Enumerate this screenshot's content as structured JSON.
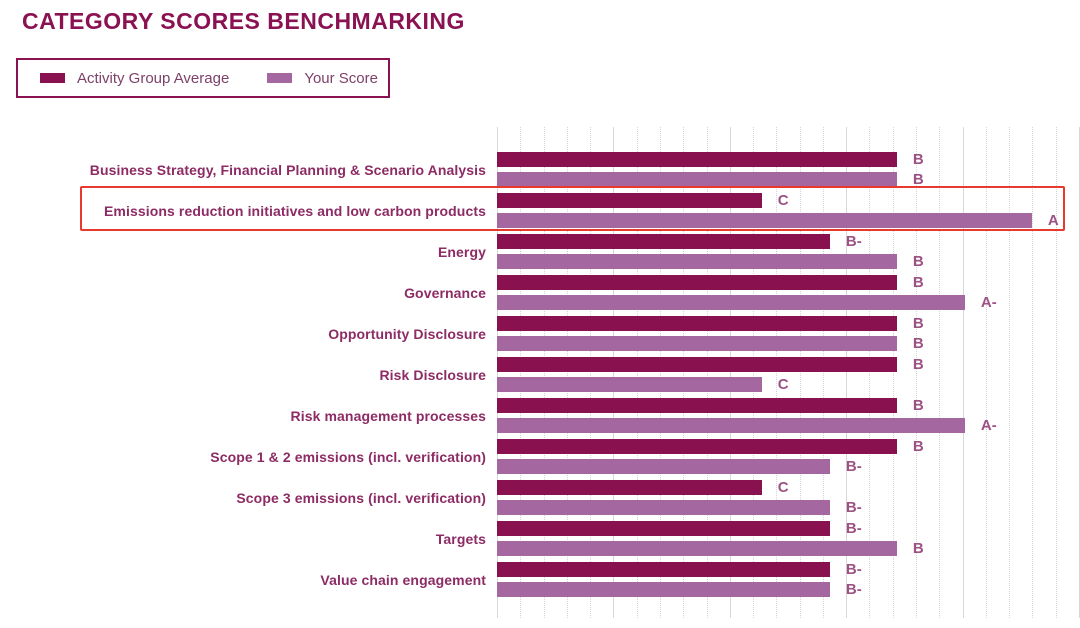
{
  "title": "CATEGORY SCORES BENCHMARKING",
  "legend": {
    "items": [
      {
        "label": "Activity Group Average",
        "color": "#8a1150"
      },
      {
        "label": "Your Score",
        "color": "#a5679f"
      }
    ]
  },
  "chart_data": {
    "type": "bar",
    "orientation": "horizontal",
    "title": "CATEGORY SCORES BENCHMARKING",
    "categories": [
      "Business Strategy, Financial Planning & Scenario Analysis",
      "Emissions reduction initiatives and low carbon products",
      "Energy",
      "Governance",
      "Opportunity Disclosure",
      "Risk Disclosure",
      "Risk management processes",
      "Scope 1 & 2 emissions (incl. verification)",
      "Scope 3 emissions (incl. verification)",
      "Targets",
      "Value chain engagement"
    ],
    "series": [
      {
        "name": "Activity Group Average",
        "color": "#8a1150",
        "grades": [
          "B",
          "C",
          "B-",
          "B",
          "B",
          "B",
          "B",
          "B",
          "C",
          "B-",
          "B-"
        ]
      },
      {
        "name": "Your Score",
        "color": "#a5679f",
        "grades": [
          "B",
          "A",
          "B",
          "A-",
          "B",
          "C",
          "A-",
          "B-",
          "B-",
          "B",
          "B-"
        ]
      }
    ],
    "grade_axis": {
      "order": [
        "C",
        "B-",
        "B",
        "A-",
        "A"
      ],
      "end_pct": {
        "C": 45.5,
        "B-": 57.2,
        "B": 68.7,
        "A-": 80.4,
        "A": 91.9
      }
    },
    "highlight": {
      "category_index": 1,
      "label": "Emissions reduction initiatives and low carbon products",
      "color": "#e8392e"
    },
    "grid": {
      "vertical": true,
      "major_lines": 6,
      "minor_per_major": 5,
      "major_color": "#d8d8d8",
      "minor_color": "#d5d5d5"
    },
    "legend_position": "top-left"
  }
}
